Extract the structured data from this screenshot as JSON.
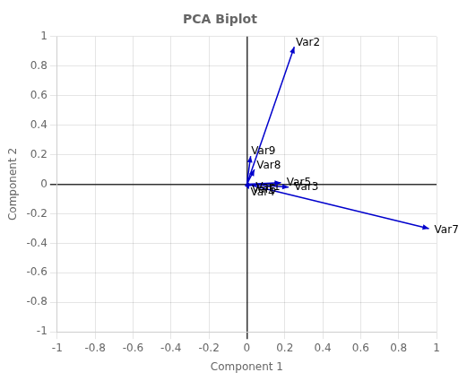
{
  "chart_data": {
    "type": "biplot",
    "title": "PCA Biplot",
    "x_label": "Component 1",
    "y_label": "Component 2",
    "categories": [
      "Var1",
      "Var2",
      "Var3",
      "Var4",
      "Var5",
      "Var6",
      "Var7",
      "Var8",
      "Var9"
    ],
    "x": [
      0.02,
      0.25,
      0.22,
      0.01,
      0.18,
      0.01,
      0.96,
      0.04,
      0.02
    ],
    "values": [
      -0.01,
      0.93,
      -0.02,
      -0.03,
      0.01,
      -0.015,
      -0.3,
      0.1,
      0.19
    ],
    "color": "#0000CC",
    "xlim": [
      -1,
      1
    ],
    "ylim": [
      -1,
      1
    ],
    "xticks": [
      -1,
      -0.8,
      -0.6,
      -0.4,
      -0.2,
      0,
      0.2,
      0.4,
      0.6,
      0.8,
      1
    ],
    "yticks": [
      -1,
      -0.8,
      -0.6,
      -0.4,
      -0.2,
      0,
      0.2,
      0.4,
      0.6,
      0.8,
      1
    ],
    "grid": true
  }
}
